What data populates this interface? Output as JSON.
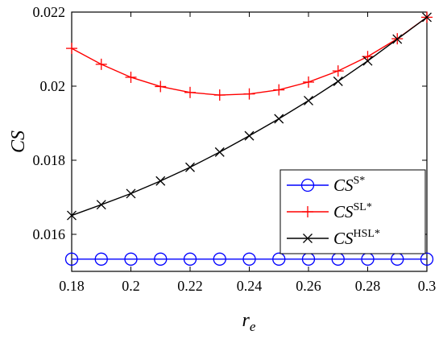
{
  "chart_data": {
    "type": "line",
    "title": "",
    "xlabel": "r",
    "xlabel_sub": "e",
    "ylabel": "CS",
    "xlim": [
      0.18,
      0.3
    ],
    "ylim": [
      0.015,
      0.022
    ],
    "xticks": [
      0.18,
      0.2,
      0.22,
      0.24,
      0.26,
      0.28,
      0.3
    ],
    "xtick_labels": [
      "0.18",
      "0.2",
      "0.22",
      "0.24",
      "0.26",
      "0.28",
      "0.3"
    ],
    "yticks": [
      0.016,
      0.018,
      0.02,
      0.022
    ],
    "ytick_labels": [
      "0.016",
      "0.018",
      "0.02",
      "0.022"
    ],
    "grid": false,
    "legend_position": "lower-right",
    "x": [
      0.18,
      0.19,
      0.2,
      0.21,
      0.22,
      0.23,
      0.24,
      0.25,
      0.26,
      0.27,
      0.28,
      0.29,
      0.3
    ],
    "series": [
      {
        "name": "CS",
        "name_sup": "S*",
        "color": "#0000ff",
        "marker": "circle",
        "values": [
          0.01533,
          0.01533,
          0.01533,
          0.01533,
          0.01533,
          0.01533,
          0.01533,
          0.01533,
          0.01533,
          0.01533,
          0.01533,
          0.01533,
          0.01533
        ]
      },
      {
        "name": "CS",
        "name_sup": "SL*",
        "color": "#ff0000",
        "marker": "plus",
        "values": [
          0.02102,
          0.02059,
          0.02024,
          0.01999,
          0.01983,
          0.01976,
          0.01979,
          0.0199,
          0.02011,
          0.02041,
          0.0208,
          0.02128,
          0.02186
        ]
      },
      {
        "name": "CS",
        "name_sup": "HSL*",
        "color": "#000000",
        "marker": "x",
        "values": [
          0.01651,
          0.0168,
          0.0171,
          0.01744,
          0.01781,
          0.01822,
          0.01866,
          0.01912,
          0.01961,
          0.02013,
          0.02068,
          0.02127,
          0.02186
        ]
      }
    ]
  }
}
